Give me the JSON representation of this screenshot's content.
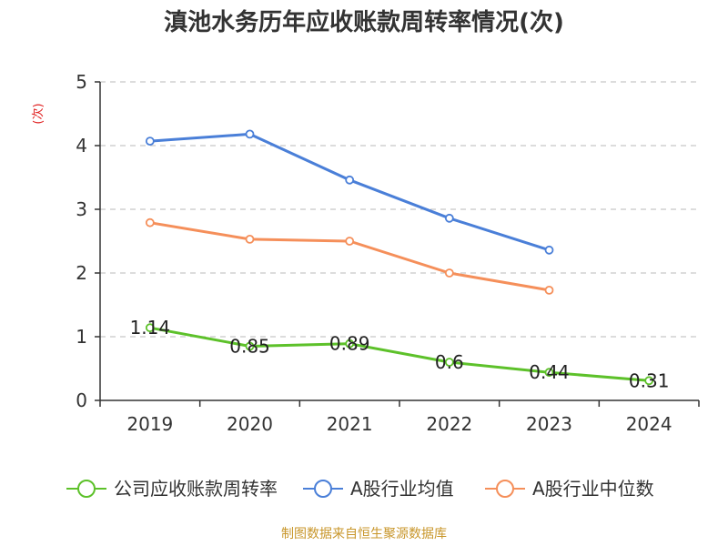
{
  "chart_data": {
    "type": "line",
    "title": "滇池水务历年应收账款周转率情况(次)",
    "ylabel": "(次)",
    "xlabel": "",
    "categories": [
      "2019",
      "2020",
      "2021",
      "2022",
      "2023",
      "2024"
    ],
    "ylim": [
      0,
      5
    ],
    "yticks": [
      0,
      1,
      2,
      3,
      4,
      5
    ],
    "grid": true,
    "legend_position": "bottom",
    "series": [
      {
        "name": "公司应收账款周转率",
        "color": "#5dc12a",
        "values": [
          1.14,
          0.85,
          0.89,
          0.6,
          0.44,
          0.31
        ],
        "labels": [
          "1.14",
          "0.85",
          "0.89",
          "0.6",
          "0.44",
          "0.31"
        ],
        "show_labels": true
      },
      {
        "name": "A股行业均值",
        "color": "#4a7fd8",
        "values": [
          4.07,
          4.18,
          3.46,
          2.86,
          2.36,
          null
        ],
        "show_labels": false
      },
      {
        "name": "A股行业中位数",
        "color": "#f58f5a",
        "values": [
          2.79,
          2.53,
          2.5,
          2.0,
          1.73,
          null
        ],
        "show_labels": false
      }
    ]
  },
  "source": "制图数据来自恒生聚源数据库"
}
